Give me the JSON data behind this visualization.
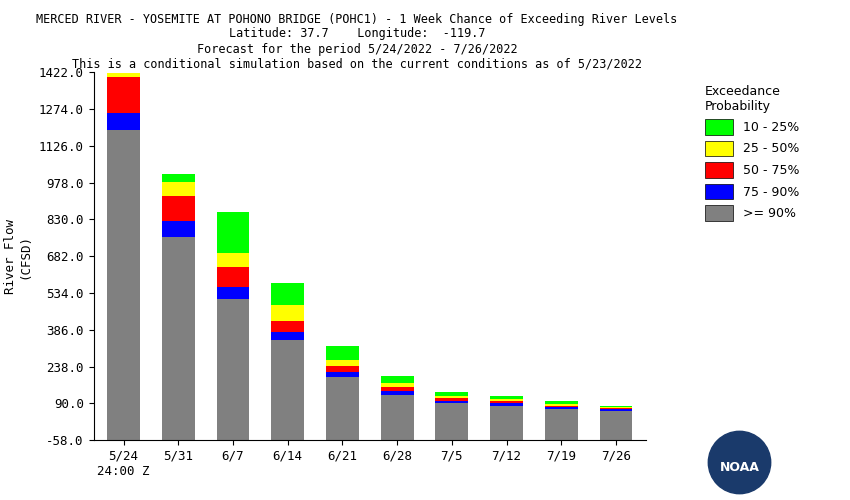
{
  "title_line1": "MERCED RIVER - YOSEMITE AT POHONO BRIDGE (POHC1) - 1 Week Chance of Exceeding River Levels",
  "title_line2": "Latitude: 37.7    Longitude:  -119.7",
  "title_line3": "Forecast for the period 5/24/2022 - 7/26/2022",
  "title_line4": "This is a conditional simulation based on the current conditions as of 5/23/2022",
  "ylabel": "River Flow\n(CFSD)",
  "xlabels": [
    "5/24\n24:00 Z",
    "5/31",
    "6/7",
    "6/14",
    "6/21",
    "6/28",
    "7/5",
    "7/12",
    "7/19",
    "7/26"
  ],
  "ylim": [
    -58.0,
    1422.0
  ],
  "yticks": [
    -58.0,
    90.0,
    238.0,
    386.0,
    534.0,
    682.0,
    830.0,
    978.0,
    1126.0,
    1274.0,
    1422.0
  ],
  "colors": {
    "ge90": "#808080",
    "p75_90": "#0000ff",
    "p50_75": "#ff0000",
    "p25_50": "#ffff00",
    "p10_25": "#00ff00"
  },
  "legend_labels": [
    "10 - 25%",
    "25 - 50%",
    "50 - 75%",
    "75 - 90%",
    ">= 90%"
  ],
  "legend_colors": [
    "#00ff00",
    "#ffff00",
    "#ff0000",
    "#0000ff",
    "#808080"
  ],
  "bar_base": -58.0,
  "bars": {
    "ge90": [
      1250,
      818,
      568,
      403,
      253,
      183,
      148,
      138,
      123,
      118
    ],
    "p75_90": [
      65,
      65,
      50,
      30,
      20,
      15,
      10,
      10,
      8,
      5
    ],
    "p50_75": [
      148,
      100,
      80,
      45,
      25,
      15,
      10,
      10,
      5,
      5
    ],
    "p25_50": [
      100,
      55,
      55,
      65,
      25,
      15,
      8,
      8,
      8,
      5
    ],
    "p10_25": [
      27,
      35,
      165,
      90,
      55,
      30,
      18,
      12,
      12,
      5
    ]
  },
  "bar_width": 0.6,
  "background_color": "#ffffff",
  "title_fontsize": 8.5,
  "axis_fontsize": 9,
  "tick_fontsize": 9
}
